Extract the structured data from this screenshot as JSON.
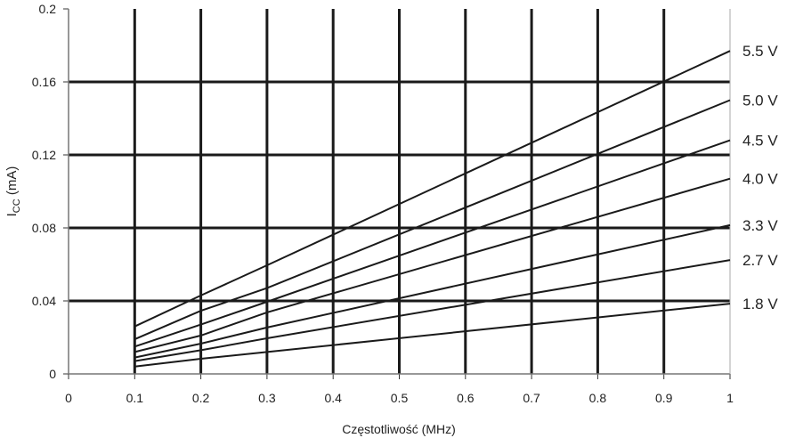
{
  "chart_data": {
    "type": "line",
    "title": "",
    "xlabel": "Częstotliwość (MHz)",
    "ylabel_main": "I",
    "ylabel_sub": "CC",
    "ylabel_unit": " (mA)",
    "xlim": [
      0,
      1
    ],
    "ylim": [
      0,
      0.2
    ],
    "grid": true,
    "legend": "right, inline labels at line ends",
    "line_color": "#1a1a1a",
    "x_ticks": [
      "0",
      "0.1",
      "0.2",
      "0.3",
      "0.4",
      "0.5",
      "0.6",
      "0.7",
      "0.8",
      "0.9",
      "1"
    ],
    "y_ticks": [
      "0",
      "0.04",
      "0.08",
      "0.12",
      "0.16",
      "0.2"
    ],
    "series": [
      {
        "name": "5.5 V",
        "x": [
          0.1,
          0.2,
          0.3,
          1
        ],
        "y": [
          0.026,
          0.043,
          0.0595,
          0.177
        ]
      },
      {
        "name": "5.0 V",
        "x": [
          0.1,
          0.2,
          0.3,
          1
        ],
        "y": [
          0.019,
          0.0346,
          0.047,
          0.15
        ]
      },
      {
        "name": "4.5 V",
        "x": [
          0.1,
          0.2,
          0.3,
          1
        ],
        "y": [
          0.015,
          0.027,
          0.0395,
          0.128
        ]
      },
      {
        "name": "4.0 V",
        "x": [
          0.1,
          0.2,
          0.3,
          1
        ],
        "y": [
          0.012,
          0.021,
          0.0337,
          0.107
        ]
      },
      {
        "name": "3.3 V",
        "x": [
          0.1,
          0.2,
          0.3,
          1
        ],
        "y": [
          0.009,
          0.0166,
          0.0254,
          0.0815
        ]
      },
      {
        "name": "2.7 V",
        "x": [
          0.1,
          0.2,
          0.3,
          1
        ],
        "y": [
          0.007,
          0.013,
          0.0195,
          0.0624
        ]
      },
      {
        "name": "1.8 V",
        "x": [
          0.1,
          0.2,
          0.3,
          1
        ],
        "y": [
          0.004,
          0.0083,
          0.012,
          0.0385
        ]
      }
    ]
  }
}
